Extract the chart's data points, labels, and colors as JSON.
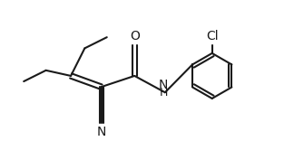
{
  "bg_color": "#ffffff",
  "line_color": "#1a1a1a",
  "line_width": 1.5,
  "font_size": 9,
  "atoms": {
    "N_label": "N",
    "H_label": "H",
    "O_label": "O",
    "Cl_label": "Cl",
    "CN_N_label": "N"
  },
  "xlim": [
    0,
    10
  ],
  "ylim": [
    0,
    5.8
  ]
}
